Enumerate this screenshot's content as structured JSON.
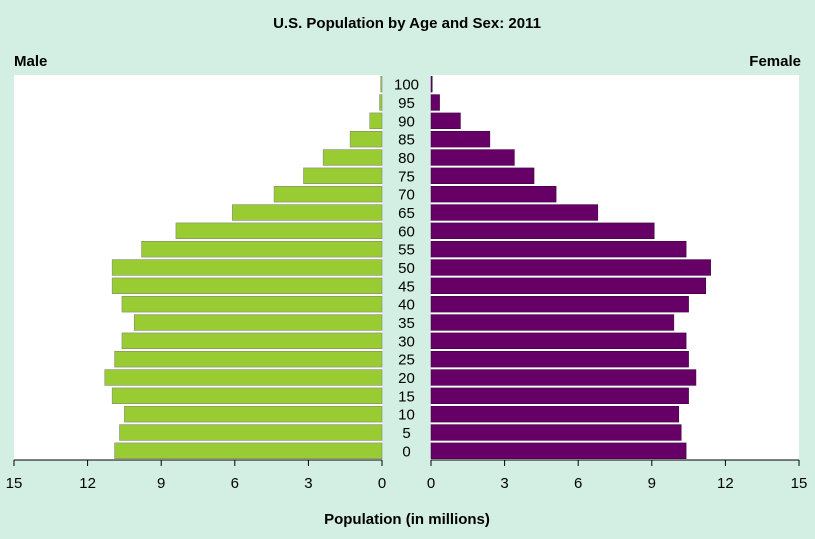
{
  "chart_data": {
    "type": "bar",
    "title": "U.S. Population by Age and Sex: 2011",
    "xlabel": "Population (in millions)",
    "left_label": "Male",
    "right_label": "Female",
    "xlim": [
      0,
      15
    ],
    "x_ticks": [
      "0",
      "3",
      "6",
      "9",
      "12",
      "15"
    ],
    "categories": [
      "0",
      "5",
      "10",
      "15",
      "20",
      "25",
      "30",
      "35",
      "40",
      "45",
      "50",
      "55",
      "60",
      "65",
      "70",
      "75",
      "80",
      "85",
      "90",
      "95",
      "100"
    ],
    "series": [
      {
        "name": "Male",
        "color": "#99cc33",
        "values": [
          10.9,
          10.7,
          10.5,
          11.0,
          11.3,
          10.9,
          10.6,
          10.1,
          10.6,
          11.0,
          11.0,
          9.8,
          8.4,
          6.1,
          4.4,
          3.2,
          2.4,
          1.3,
          0.5,
          0.1,
          0.05
        ]
      },
      {
        "name": "Female",
        "color": "#660066",
        "values": [
          10.4,
          10.2,
          10.1,
          10.5,
          10.8,
          10.5,
          10.4,
          9.9,
          10.5,
          11.2,
          11.4,
          10.4,
          9.1,
          6.8,
          5.1,
          4.2,
          3.4,
          2.4,
          1.2,
          0.35,
          0.05
        ]
      }
    ]
  }
}
